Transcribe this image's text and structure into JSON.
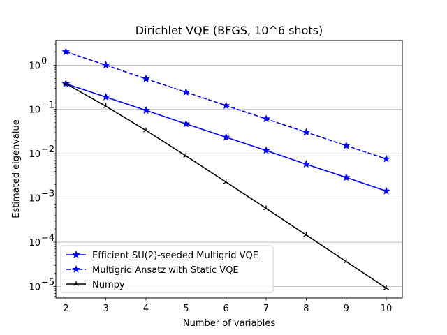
{
  "chart_data": {
    "type": "line",
    "title": "Dirichlet VQE (BFGS, 10^6 shots)",
    "xlabel": "Number of variables",
    "ylabel": "Estimated eigenvalue",
    "yscale": "log",
    "xlim": [
      1.75,
      10.4
    ],
    "ylim": [
      5.5e-06,
      3.6
    ],
    "x": [
      2,
      3,
      4,
      5,
      6,
      7,
      8,
      9,
      10
    ],
    "x_ticks": [
      "2",
      "3",
      "4",
      "5",
      "6",
      "7",
      "8",
      "9",
      "10"
    ],
    "y_ticks": [
      {
        "value": 1,
        "base": "10",
        "exp": "0"
      },
      {
        "value": 0.1,
        "base": "10",
        "exp": "−1"
      },
      {
        "value": 0.01,
        "base": "10",
        "exp": "−2"
      },
      {
        "value": 0.001,
        "base": "10",
        "exp": "−3"
      },
      {
        "value": 0.0001,
        "base": "10",
        "exp": "−4"
      },
      {
        "value": 1e-05,
        "base": "10",
        "exp": "−5"
      }
    ],
    "grid": "y-major",
    "legend_position": "lower-left",
    "series": [
      {
        "name": "Efficient SU(2)-seeded Multigrid VQE",
        "color": "#0000ff",
        "line": "solid",
        "marker": "star",
        "values": [
          0.38,
          0.19,
          0.095,
          0.047,
          0.0235,
          0.0118,
          0.0058,
          0.0029,
          0.00143
        ]
      },
      {
        "name": "Multigrid Ansatz with Static VQE",
        "color": "#0000ff",
        "line": "dashed",
        "marker": "star",
        "values": [
          2.0,
          1.0,
          0.49,
          0.245,
          0.122,
          0.061,
          0.0305,
          0.0152,
          0.0076
        ]
      },
      {
        "name": "Numpy",
        "color": "#000000",
        "line": "solid",
        "marker": "tri-down",
        "values": [
          0.38,
          0.118,
          0.0335,
          0.0089,
          0.00228,
          0.00058,
          0.000146,
          3.66e-05,
          9.2e-06
        ]
      }
    ]
  }
}
